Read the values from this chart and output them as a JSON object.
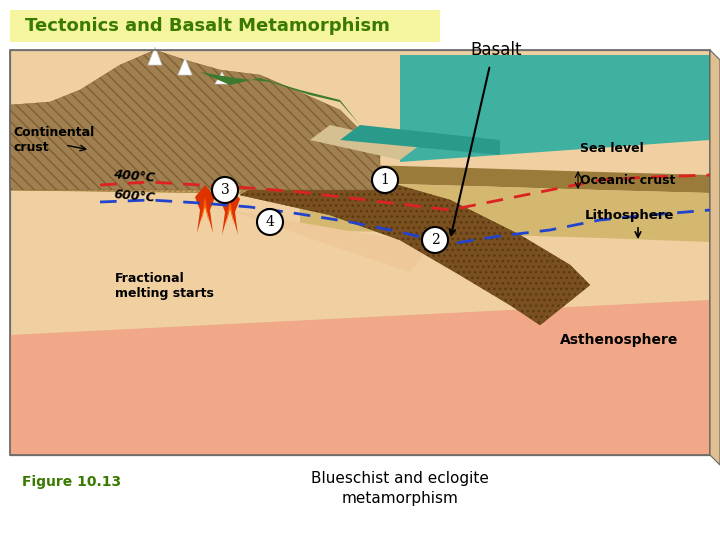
{
  "title": "Tectonics and Basalt Metamorphism",
  "title_bg": "#F5F5A0",
  "title_color": "#3A7A00",
  "basalt_label": "Basalt",
  "figure_label": "Figure 10.13",
  "caption_line1": "Blueschist and eclogite",
  "caption_line2": "metamorphism",
  "bg_color": "#FFFFFF",
  "label_continental": "Continental\ncrust",
  "label_sealevel": "Sea level",
  "label_oceanic": "Oceanic crust",
  "label_lithosphere": "Lithosphere",
  "label_asthenosphere": "Asthenosphere",
  "label_fractional": "Fractional\nmelting starts",
  "label_400": "400°C",
  "label_600": "600°C"
}
